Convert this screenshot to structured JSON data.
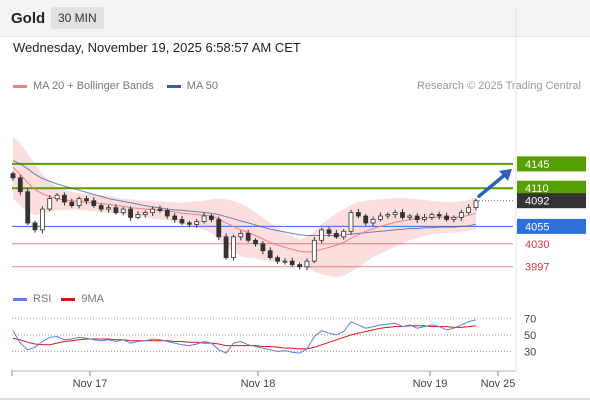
{
  "header": {
    "title": "Gold",
    "interval": "30 MIN"
  },
  "datetime": "Wednesday, November 19, 2025 6:58:57 AM CET",
  "copyright": "Research © 2025 Trading Central",
  "colors": {
    "up": "#3a3a3a",
    "bb_fill": "#fdd8d8",
    "ma20": "#f08080",
    "ma50": "#3b5e9c",
    "resistance": "#55a000",
    "pivot": "#2f6fdd",
    "support": "#e0393e",
    "rsi": "#5b7fde",
    "rsi_ma": "#d9141b",
    "arrow": "#2c62b8"
  },
  "chart_data": [
    {
      "type": "candlestick",
      "legend": [
        {
          "name": "MA 20 + Bollinger Bands",
          "color": "#f08080"
        },
        {
          "name": "MA 50",
          "color": "#3b5e9c"
        }
      ],
      "x_ticks": [
        "Nov 17",
        "Nov 18",
        "Nov 19",
        "Nov 25"
      ],
      "ylim": [
        3975,
        4165
      ],
      "levels": [
        {
          "value": 4145,
          "label": "4145",
          "kind": "resistance"
        },
        {
          "value": 4110,
          "label": "4110",
          "kind": "resistance"
        },
        {
          "value": 4055,
          "label": "4055",
          "kind": "pivot"
        },
        {
          "value": 4030,
          "label": "4030",
          "kind": "support"
        },
        {
          "value": 3997,
          "label": "3997",
          "kind": "support"
        }
      ],
      "last_price": {
        "value": 4092,
        "label": "4092"
      },
      "close": [
        4125,
        4105,
        4060,
        4050,
        4080,
        4095,
        4100,
        4090,
        4085,
        4095,
        4092,
        4085,
        4080,
        4082,
        4075,
        4080,
        4068,
        4072,
        4075,
        4080,
        4078,
        4070,
        4065,
        4060,
        4058,
        4062,
        4070,
        4065,
        4040,
        4010,
        4040,
        4045,
        4035,
        4030,
        4020,
        4010,
        4005,
        4005,
        4000,
        3997,
        4005,
        4035,
        4050,
        4045,
        4040,
        4048,
        4075,
        4070,
        4060,
        4065,
        4070,
        4072,
        4075,
        4068,
        4070,
        4065,
        4068,
        4072,
        4070,
        4065,
        4068,
        4075,
        4082,
        4092
      ],
      "ma20": [
        4140,
        4130,
        4118,
        4108,
        4102,
        4098,
        4095,
        4093,
        4092,
        4091,
        4090,
        4089,
        4088,
        4087,
        4085,
        4084,
        4082,
        4081,
        4080,
        4079,
        4078,
        4077,
        4076,
        4074,
        4073,
        4072,
        4071,
        4070,
        4066,
        4060,
        4055,
        4050,
        4046,
        4042,
        4037,
        4032,
        4028,
        4025,
        4022,
        4019,
        4018,
        4019,
        4022,
        4025,
        4028,
        4032,
        4038,
        4043,
        4048,
        4052,
        4055,
        4058,
        4061,
        4063,
        4065,
        4066,
        4067,
        4068,
        4068,
        4068,
        4068,
        4069,
        4071,
        4074
      ],
      "ma50": [
        4150,
        4145,
        4138,
        4130,
        4124,
        4120,
        4116,
        4113,
        4110,
        4107,
        4104,
        4101,
        4098,
        4095,
        4093,
        4091,
        4089,
        4087,
        4085,
        4083,
        4082,
        4080,
        4079,
        4078,
        4077,
        4076,
        4075,
        4074,
        4072,
        4069,
        4066,
        4063,
        4060,
        4057,
        4054,
        4051,
        4049,
        4047,
        4045,
        4043,
        4042,
        4042,
        4042,
        4042,
        4042,
        4043,
        4044,
        4045,
        4046,
        4047,
        4048,
        4049,
        4050,
        4051,
        4052,
        4052,
        4053,
        4053,
        4054,
        4054,
        4054,
        4055,
        4056,
        4058
      ],
      "bb_upper": [
        4185,
        4175,
        4160,
        4145,
        4130,
        4120,
        4112,
        4108,
        4105,
        4103,
        4102,
        4101,
        4100,
        4099,
        4097,
        4095,
        4094,
        4093,
        4092,
        4092,
        4091,
        4090,
        4090,
        4089,
        4090,
        4091,
        4092,
        4094,
        4095,
        4094,
        4092,
        4088,
        4082,
        4075,
        4068,
        4060,
        4052,
        4046,
        4040,
        4036,
        4040,
        4048,
        4058,
        4066,
        4074,
        4080,
        4086,
        4090,
        4092,
        4093,
        4094,
        4095,
        4096,
        4096,
        4095,
        4094,
        4093,
        4092,
        4091,
        4090,
        4090,
        4091,
        4093,
        4097
      ],
      "bb_lower": [
        4095,
        4085,
        4076,
        4071,
        4074,
        4076,
        4078,
        4078,
        4079,
        4079,
        4078,
        4077,
        4076,
        4075,
        4073,
        4073,
        4070,
        4069,
        4068,
        4066,
        4065,
        4064,
        4062,
        4059,
        4056,
        4053,
        4050,
        4046,
        4037,
        4026,
        4018,
        4012,
        4010,
        4009,
        4006,
        4004,
        4004,
        4004,
        4004,
        4002,
        3996,
        3990,
        3986,
        3984,
        3982,
        3984,
        3990,
        3996,
        4004,
        4011,
        4016,
        4021,
        4026,
        4030,
        4035,
        4038,
        4041,
        4044,
        4045,
        4046,
        4046,
        4047,
        4049,
        4051
      ]
    },
    {
      "type": "line",
      "name": "RSI",
      "legend": [
        {
          "name": "RSI",
          "color": "#5b7fde"
        },
        {
          "name": "9MA",
          "color": "#d9141b"
        }
      ],
      "y_ticks": [
        "70",
        "50",
        "30"
      ],
      "ylim": [
        10,
        80
      ],
      "series": [
        {
          "name": "RSI",
          "values": [
            55,
            40,
            32,
            35,
            42,
            47,
            48,
            44,
            45,
            47,
            46,
            44,
            43,
            44,
            42,
            44,
            40,
            42,
            43,
            45,
            44,
            42,
            40,
            38,
            37,
            39,
            42,
            40,
            32,
            28,
            40,
            42,
            38,
            36,
            34,
            32,
            30,
            31,
            29,
            28,
            33,
            48,
            55,
            52,
            50,
            54,
            66,
            62,
            58,
            60,
            62,
            63,
            64,
            60,
            62,
            58,
            60,
            62,
            60,
            56,
            58,
            62,
            66,
            68
          ]
        },
        {
          "name": "9MA",
          "values": [
            46,
            44,
            41,
            39,
            38,
            38,
            40,
            42,
            43,
            44,
            45,
            45,
            45,
            45,
            44,
            44,
            43,
            43,
            43,
            43,
            43,
            43,
            42,
            42,
            41,
            41,
            40,
            40,
            39,
            37,
            37,
            37,
            37,
            37,
            36,
            36,
            35,
            34,
            34,
            33,
            33,
            35,
            38,
            41,
            44,
            47,
            50,
            52,
            54,
            56,
            58,
            59,
            60,
            60,
            61,
            61,
            61,
            60,
            60,
            60,
            59,
            59,
            60,
            61
          ]
        }
      ]
    }
  ]
}
